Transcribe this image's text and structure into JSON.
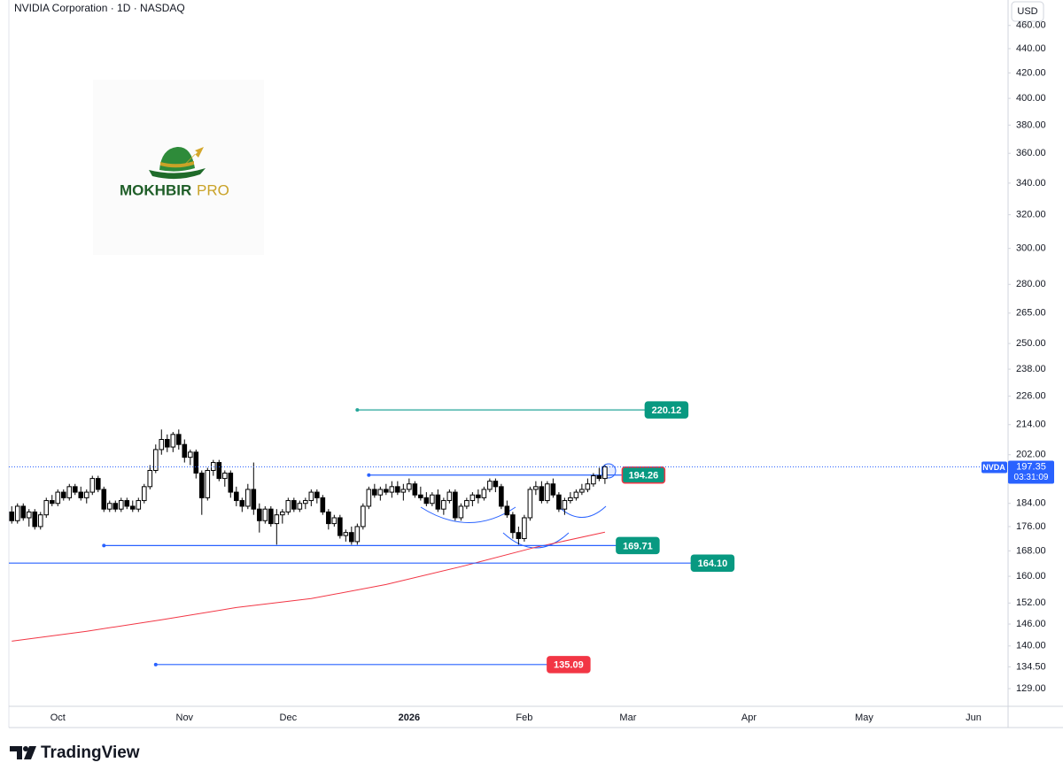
{
  "chart_data": {
    "type": "candlestick",
    "title": "NVIDIA Corporation · 1D · NASDAQ",
    "currency": "USD",
    "symbol": "NVDA",
    "countdown": "03:31:09",
    "watermark": {
      "name": "MOKHBIR",
      "suffix": "PRO"
    },
    "brand": "TradingView",
    "log_scale": true,
    "grid": false,
    "ylim": [
      124.7,
      483
    ],
    "yticks": [
      {
        "value": 460,
        "label": "460.00"
      },
      {
        "value": 440,
        "label": "440.00"
      },
      {
        "value": 420,
        "label": "420.00"
      },
      {
        "value": 400,
        "label": "400.00"
      },
      {
        "value": 380,
        "label": "380.00"
      },
      {
        "value": 360,
        "label": "360.00"
      },
      {
        "value": 340,
        "label": "340.00"
      },
      {
        "value": 320,
        "label": "320.00"
      },
      {
        "value": 300,
        "label": "300.00"
      },
      {
        "value": 280,
        "label": "280.00"
      },
      {
        "value": 265,
        "label": "265.00"
      },
      {
        "value": 250,
        "label": "250.00"
      },
      {
        "value": 238,
        "label": "238.00"
      },
      {
        "value": 226,
        "label": "226.00"
      },
      {
        "value": 214,
        "label": "214.00"
      },
      {
        "value": 202,
        "label": "202.00"
      },
      {
        "value": 184,
        "label": "184.00"
      },
      {
        "value": 176,
        "label": "176.00"
      },
      {
        "value": 168,
        "label": "168.00"
      },
      {
        "value": 160,
        "label": "160.00"
      },
      {
        "value": 152,
        "label": "152.00"
      },
      {
        "value": 146,
        "label": "146.00"
      },
      {
        "value": 140,
        "label": "140.00"
      },
      {
        "value": 134.5,
        "label": "134.50"
      },
      {
        "value": 129,
        "label": "129.00"
      }
    ],
    "xlim": [
      -0.5,
      173
    ],
    "xticks": [
      {
        "value": 8,
        "label": "Oct"
      },
      {
        "value": 30,
        "label": "Nov"
      },
      {
        "value": 48,
        "label": "Dec"
      },
      {
        "value": 69,
        "label": "2026"
      },
      {
        "value": 89,
        "label": "Feb"
      },
      {
        "value": 107,
        "label": "Mar"
      },
      {
        "value": 128,
        "label": "Apr"
      },
      {
        "value": 148,
        "label": "May"
      },
      {
        "value": 167,
        "label": "Jun"
      }
    ],
    "categories": [
      null,
      null,
      null,
      null,
      null,
      null,
      null,
      null,
      null,
      null,
      null,
      null,
      null,
      null,
      null,
      null,
      null,
      null,
      null,
      null,
      null,
      null,
      null,
      null,
      null,
      null,
      null,
      null,
      null,
      null,
      null,
      null,
      null,
      null,
      null,
      null,
      null,
      null,
      null,
      null,
      null,
      null,
      null,
      null,
      null,
      null,
      null,
      null,
      null,
      null,
      null,
      null,
      null,
      null,
      null,
      null,
      null,
      null,
      null,
      null,
      null,
      null,
      null,
      null,
      null,
      null,
      null,
      null,
      null,
      null,
      null,
      null,
      null,
      null,
      null,
      null,
      null,
      null,
      null,
      null,
      null,
      null,
      null,
      null,
      null,
      null,
      null,
      null,
      null,
      null,
      null,
      null,
      null,
      null,
      null,
      null,
      null,
      null,
      null,
      null,
      null,
      null,
      null,
      null
    ],
    "candles": {
      "up_color": "#ffffff",
      "down_color": "#000000",
      "border_color": "#000000",
      "open": [
        181,
        178,
        183,
        179,
        181,
        176,
        180,
        185,
        184,
        188,
        186,
        190,
        188,
        186,
        188,
        193,
        189,
        182,
        184,
        182,
        185,
        183,
        182,
        185,
        190,
        196,
        204,
        208,
        205,
        210,
        206,
        201,
        203,
        195,
        186,
        196,
        199,
        193,
        195,
        188,
        185,
        183,
        189,
        182,
        178,
        182,
        177,
        180,
        181,
        185,
        182,
        184,
        185,
        188,
        186,
        181,
        177,
        179,
        173,
        174,
        171,
        176,
        183,
        189,
        187,
        189,
        188,
        190,
        188,
        189,
        191,
        187,
        186,
        184,
        187,
        182,
        185,
        188,
        179,
        183,
        185,
        187,
        186,
        189,
        192,
        190,
        183,
        180,
        174,
        172,
        179,
        189,
        190,
        185,
        191,
        187,
        182,
        185,
        186,
        188,
        189,
        191,
        194,
        193
      ],
      "high": [
        183,
        184,
        184,
        182,
        182,
        181,
        186,
        187,
        189,
        189,
        191,
        191,
        190,
        189,
        194,
        194,
        190,
        185,
        185,
        186,
        186,
        185,
        186,
        191,
        198,
        206,
        212,
        210,
        211,
        212,
        208,
        204,
        204,
        196,
        197,
        200,
        200,
        196,
        196,
        190,
        186,
        191,
        199,
        184,
        183,
        183,
        182,
        182,
        186,
        186,
        185,
        186,
        189,
        189,
        187,
        182,
        180,
        180,
        175,
        176,
        177,
        184,
        190,
        191,
        190,
        191,
        192,
        192,
        191,
        193,
        192,
        190,
        188,
        188,
        189,
        186,
        189,
        189,
        184,
        186,
        188,
        189,
        190,
        193,
        193,
        191,
        185,
        181,
        176,
        180,
        190,
        192,
        192,
        192,
        193,
        188,
        186,
        188,
        189,
        191,
        193,
        195,
        197,
        198
      ],
      "low": [
        177,
        177,
        178,
        176,
        175,
        175,
        179,
        183,
        183,
        185,
        185,
        187,
        185,
        184,
        187,
        188,
        181,
        181,
        181,
        181,
        182,
        181,
        181,
        184,
        189,
        195,
        202,
        203,
        203,
        204,
        199,
        198,
        193,
        180,
        185,
        194,
        192,
        190,
        186,
        183,
        181,
        182,
        180,
        174,
        177,
        176,
        170,
        177,
        180,
        181,
        181,
        182,
        183,
        184,
        180,
        175,
        176,
        172,
        171,
        170,
        170,
        175,
        182,
        186,
        185,
        187,
        186,
        187,
        185,
        188,
        186,
        185,
        183,
        183,
        181,
        180,
        184,
        178,
        178,
        182,
        183,
        184,
        185,
        188,
        188,
        182,
        179,
        172,
        170,
        171,
        178,
        187,
        184,
        184,
        186,
        181,
        180,
        184,
        185,
        187,
        188,
        190,
        192,
        191
      ],
      "close": [
        178,
        183,
        179,
        181,
        176,
        180,
        185,
        184,
        188,
        186,
        190,
        188,
        186,
        188,
        193,
        189,
        182,
        184,
        182,
        185,
        183,
        182,
        185,
        190,
        196,
        204,
        208,
        205,
        210,
        206,
        201,
        203,
        195,
        186,
        196,
        199,
        193,
        195,
        188,
        185,
        183,
        189,
        182,
        178,
        182,
        177,
        180,
        181,
        185,
        182,
        184,
        185,
        188,
        186,
        181,
        177,
        179,
        173,
        174,
        171,
        176,
        183,
        189,
        187,
        189,
        188,
        190,
        188,
        189,
        191,
        187,
        186,
        184,
        187,
        182,
        185,
        188,
        179,
        183,
        185,
        187,
        186,
        189,
        192,
        190,
        183,
        180,
        174,
        172,
        179,
        189,
        190,
        185,
        191,
        187,
        182,
        185,
        186,
        188,
        189,
        191,
        194,
        193,
        197.35
      ]
    },
    "moving_average": {
      "color": "#f23645",
      "x": [
        0,
        13,
        26,
        39,
        52,
        65,
        78,
        91,
        103
      ],
      "values": [
        141.3,
        144.0,
        147.2,
        150.7,
        153.3,
        157.5,
        163.0,
        169.2,
        174.1
      ]
    },
    "last_price": {
      "value": 197.35,
      "color": "#2962ff"
    },
    "levels": [
      {
        "value": 220.12,
        "from": 60,
        "to": 110,
        "line_color": "#26a69a",
        "label_color": "#089981",
        "border_color": "#089981"
      },
      {
        "value": 194.26,
        "from": 62,
        "to": 106,
        "line_color": "#2962ff",
        "label_color": "#089981",
        "border_color": "#f23645"
      },
      {
        "value": 169.71,
        "from": 16,
        "to": 105,
        "line_color": "#2962ff",
        "label_color": "#089981",
        "border_color": "#089981"
      },
      {
        "value": 164.1,
        "label": "164.10",
        "from": -0.5,
        "to": 118,
        "line_color": "#2962ff",
        "label_color": "#089981",
        "border_color": "#089981"
      },
      {
        "value": 135.09,
        "from": 25,
        "to": 93,
        "line_color": "#2962ff",
        "label_color": "#f23645",
        "border_color": "#f23645"
      }
    ]
  }
}
